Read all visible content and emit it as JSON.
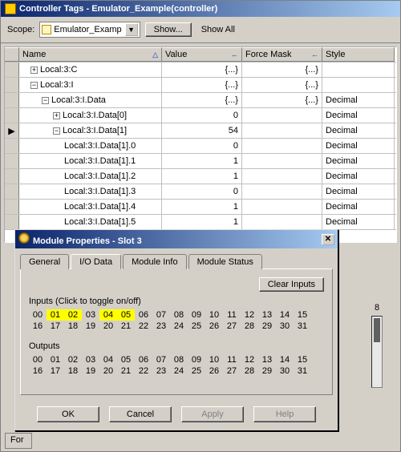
{
  "main_title": "Controller Tags - Emulator_Example(controller)",
  "toolbar": {
    "scope_label": "Scope:",
    "scope_value": "Emulator_Examp",
    "show_button": "Show...",
    "show_all": "Show All"
  },
  "grid_headers": {
    "name": "Name",
    "value": "Value",
    "force": "Force Mask",
    "style": "Style"
  },
  "rows": [
    {
      "indent": 1,
      "toggle": "+",
      "name": "Local:3:C",
      "value": "{...}",
      "force": "{...}",
      "style": ""
    },
    {
      "indent": 1,
      "toggle": "−",
      "name": "Local:3:I",
      "value": "{...}",
      "force": "{...}",
      "style": ""
    },
    {
      "indent": 2,
      "toggle": "−",
      "name": "Local:3:I.Data",
      "value": "{...}",
      "force": "{...}",
      "style": "Decimal"
    },
    {
      "indent": 3,
      "toggle": "+",
      "name": "Local:3:I.Data[0]",
      "value": "0",
      "force": "",
      "style": "Decimal"
    },
    {
      "indent": 3,
      "toggle": "−",
      "name": "Local:3:I.Data[1]",
      "value": "54",
      "force": "",
      "style": "Decimal",
      "mark": true
    },
    {
      "indent": 4,
      "toggle": "",
      "name": "Local:3:I.Data[1].0",
      "value": "0",
      "force": "",
      "style": "Decimal"
    },
    {
      "indent": 4,
      "toggle": "",
      "name": "Local:3:I.Data[1].1",
      "value": "1",
      "force": "",
      "style": "Decimal"
    },
    {
      "indent": 4,
      "toggle": "",
      "name": "Local:3:I.Data[1].2",
      "value": "1",
      "force": "",
      "style": "Decimal"
    },
    {
      "indent": 4,
      "toggle": "",
      "name": "Local:3:I.Data[1].3",
      "value": "0",
      "force": "",
      "style": "Decimal"
    },
    {
      "indent": 4,
      "toggle": "",
      "name": "Local:3:I.Data[1].4",
      "value": "1",
      "force": "",
      "style": "Decimal"
    },
    {
      "indent": 4,
      "toggle": "",
      "name": "Local:3:I.Data[1].5",
      "value": "1",
      "force": "",
      "style": "Decimal"
    }
  ],
  "dialog": {
    "title": "Module Properties - Slot 3",
    "tabs": [
      "General",
      "I/O Data",
      "Module Info",
      "Module Status"
    ],
    "active_tab": 1,
    "clear_inputs": "Clear Inputs",
    "inputs_label": "Inputs   (Click to toggle on/off)",
    "outputs_label": "Outputs",
    "on_bits": [
      1,
      2,
      4,
      5
    ],
    "bit_labels": [
      "00",
      "01",
      "02",
      "03",
      "04",
      "05",
      "06",
      "07",
      "08",
      "09",
      "10",
      "11",
      "12",
      "13",
      "14",
      "15",
      "16",
      "17",
      "18",
      "19",
      "20",
      "21",
      "22",
      "23",
      "24",
      "25",
      "26",
      "27",
      "28",
      "29",
      "30",
      "31"
    ],
    "buttons": {
      "ok": "OK",
      "cancel": "Cancel",
      "apply": "Apply",
      "help": "Help"
    }
  },
  "side_number": "8",
  "bottom": {
    "label": "For",
    "v1_name": "",
    "v1": "",
    "v2": ""
  }
}
